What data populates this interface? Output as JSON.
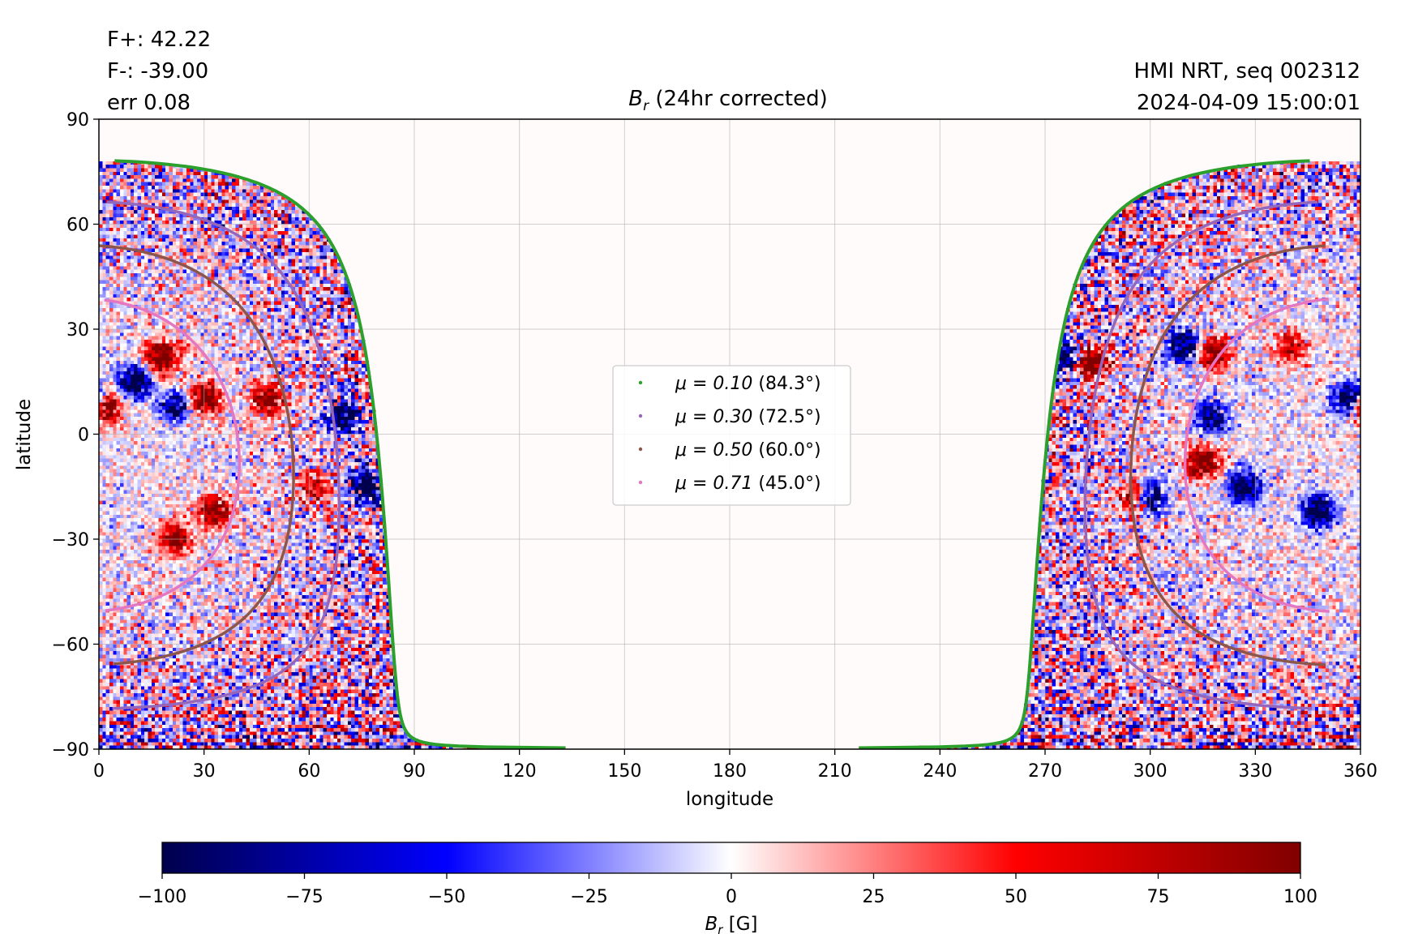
{
  "header": {
    "flux_pos": "F+: 42.22",
    "flux_neg": "F-: -39.00",
    "err": "err 0.08",
    "instrument": "HMI NRT, seq 002312",
    "timestamp": "2024-04-09 15:00:01",
    "title_var": "B",
    "title_sub": "r",
    "title_rest": " (24hr corrected)"
  },
  "chart_data": [
    {
      "type": "heatmap",
      "title": "B_r (24hr corrected)",
      "xlabel": "longitude",
      "ylabel": "latitude",
      "xlim": [
        0,
        360
      ],
      "ylim": [
        -90,
        90
      ],
      "xticks": [
        "0",
        "30",
        "60",
        "90",
        "120",
        "150",
        "180",
        "210",
        "240",
        "270",
        "300",
        "330",
        "360"
      ],
      "yticks": [
        "90",
        "60",
        "30",
        "0",
        "−30",
        "−60",
        "−90"
      ],
      "grid": true,
      "disk_center": {
        "lon": 355,
        "lat": -6
      },
      "legend_position": "center",
      "series": [
        {
          "name": "μ = 0.10 (84.3°)",
          "label_main": "μ = 0.10",
          "label_angle": " (84.3°)",
          "mu": 0.1,
          "angle_deg": 84.3,
          "color": "#2ca02c"
        },
        {
          "name": "μ = 0.30 (72.5°)",
          "label_main": "μ = 0.30",
          "label_angle": " (72.5°)",
          "mu": 0.3,
          "angle_deg": 72.5,
          "color": "#9467bd"
        },
        {
          "name": "μ = 0.50 (60.0°)",
          "label_main": "μ = 0.50",
          "label_angle": " (60.0°)",
          "mu": 0.5,
          "angle_deg": 60.0,
          "color": "#8c564b"
        },
        {
          "name": "μ = 0.71 (45.0°)",
          "label_main": "μ = 0.71",
          "label_angle": " (45.0°)",
          "mu": 0.71,
          "angle_deg": 45.0,
          "color": "#e377c2"
        }
      ],
      "regions": [
        {
          "lon": 10,
          "lat": 15,
          "sign": -1,
          "strength": 1.0
        },
        {
          "lon": 2,
          "lat": 8,
          "sign": 1,
          "strength": 1.0
        },
        {
          "lon": 18,
          "lat": 22,
          "sign": 1,
          "strength": 1.0
        },
        {
          "lon": 30,
          "lat": 10,
          "sign": 1,
          "strength": 0.9
        },
        {
          "lon": 22,
          "lat": 8,
          "sign": -1,
          "strength": 0.7
        },
        {
          "lon": 33,
          "lat": -22,
          "sign": 1,
          "strength": 0.9
        },
        {
          "lon": 22,
          "lat": -30,
          "sign": 1,
          "strength": 0.8
        },
        {
          "lon": 48,
          "lat": 10,
          "sign": 1,
          "strength": 0.8
        },
        {
          "lon": 62,
          "lat": -15,
          "sign": 1,
          "strength": 0.6
        },
        {
          "lon": 70,
          "lat": 5,
          "sign": -1,
          "strength": 1.0
        },
        {
          "lon": 76,
          "lat": -15,
          "sign": -1,
          "strength": 1.0
        },
        {
          "lon": 283,
          "lat": 20,
          "sign": 1,
          "strength": 1.0
        },
        {
          "lon": 276,
          "lat": 22,
          "sign": -1,
          "strength": 0.8
        },
        {
          "lon": 310,
          "lat": 25,
          "sign": -1,
          "strength": 1.0
        },
        {
          "lon": 318,
          "lat": 23,
          "sign": 1,
          "strength": 0.9
        },
        {
          "lon": 318,
          "lat": 5,
          "sign": -1,
          "strength": 0.8
        },
        {
          "lon": 315,
          "lat": -8,
          "sign": 1,
          "strength": 1.0
        },
        {
          "lon": 300,
          "lat": -18,
          "sign": -1,
          "strength": 0.8
        },
        {
          "lon": 295,
          "lat": -18,
          "sign": 1,
          "strength": 0.7
        },
        {
          "lon": 327,
          "lat": -15,
          "sign": -1,
          "strength": 0.9
        },
        {
          "lon": 348,
          "lat": -22,
          "sign": -1,
          "strength": 1.0
        },
        {
          "lon": 357,
          "lat": 10,
          "sign": -1,
          "strength": 1.0
        },
        {
          "lon": 340,
          "lat": 25,
          "sign": 1,
          "strength": 0.6
        }
      ]
    },
    {
      "type": "colorbar",
      "label_var": "B",
      "label_sub": "r",
      "label_unit": " [G]",
      "range": [
        -100,
        100
      ],
      "ticks": [
        "−100",
        "−75",
        "−50",
        "−25",
        "0",
        "25",
        "50",
        "75",
        "100"
      ],
      "colormap": "seismic",
      "colors": [
        "#00004c",
        "#0000ff",
        "#ffffff",
        "#ff0000",
        "#800000"
      ]
    }
  ]
}
